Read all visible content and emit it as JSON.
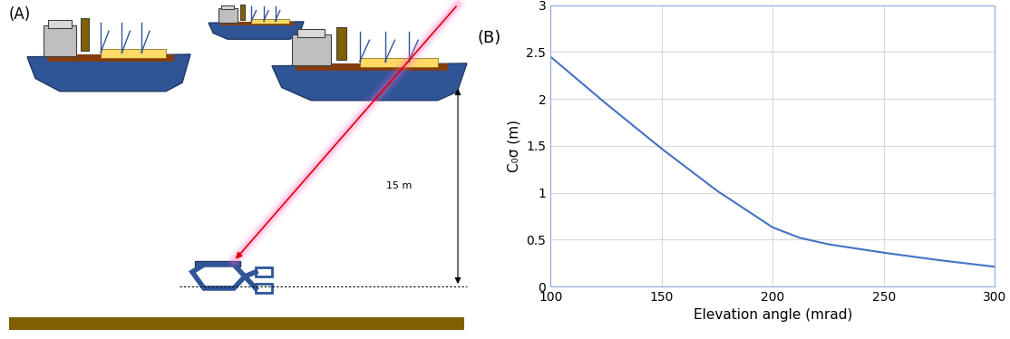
{
  "labels": {
    "panel_a": "(A)",
    "panel_b": "(B)",
    "depth": "15 m"
  },
  "chart_data": {
    "type": "line",
    "x_label": "Elevation angle (mrad)",
    "y_label": "C₀σ (m)",
    "x": [
      100,
      125,
      150,
      175,
      200,
      212,
      225,
      250,
      275,
      300
    ],
    "values": [
      2.45,
      1.95,
      1.47,
      1.02,
      0.63,
      0.52,
      0.45,
      0.36,
      0.28,
      0.21
    ],
    "color": "#4472c4",
    "xlim": [
      100,
      300
    ],
    "xticks": [
      100,
      150,
      200,
      250,
      300
    ],
    "ylim": [
      0,
      3
    ],
    "yticks": [
      0,
      0.5,
      1,
      1.5,
      2,
      2.5,
      3
    ],
    "grid": true
  }
}
